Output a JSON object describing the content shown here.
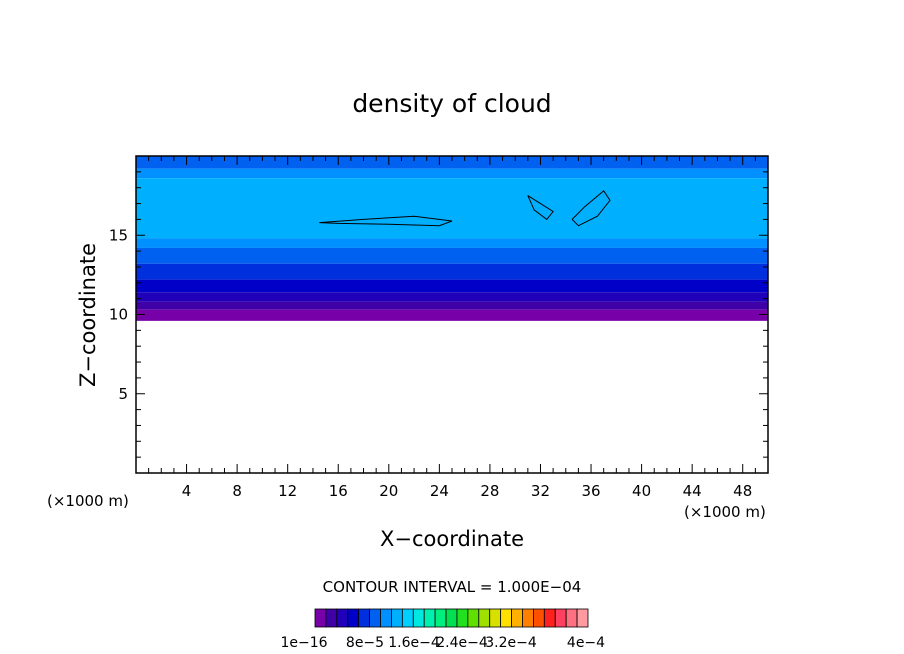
{
  "chart_data": {
    "type": "heatmap",
    "title": "density of cloud",
    "xlabel": "X−coordinate",
    "ylabel": "Z−coordinate",
    "x_unit": "(×1000 m)",
    "x_unit_right": "(×1000 m)",
    "xlim": [
      0,
      50
    ],
    "ylim": [
      0,
      20
    ],
    "x_ticks": [
      "4",
      "8",
      "12",
      "16",
      "20",
      "24",
      "28",
      "32",
      "36",
      "40",
      "44",
      "48"
    ],
    "y_ticks": [
      "5",
      "10",
      "15"
    ],
    "contour_interval": "CONTOUR INTERVAL = 1.000E−04",
    "colorbar_labels": [
      "1e−16",
      "8e−5",
      "1.6e−4",
      "2.4e−4",
      "3.2e−4",
      "4e−4"
    ],
    "colorbar_colors": [
      "#7700a8",
      "#4000a8",
      "#2000b8",
      "#0000c8",
      "#0030dd",
      "#0060f0",
      "#0090ff",
      "#00b0ff",
      "#00d0ff",
      "#00e8e0",
      "#00f0b0",
      "#00f080",
      "#00e050",
      "#20e020",
      "#60e000",
      "#a0e000",
      "#d8e000",
      "#ffe000",
      "#ffb000",
      "#ff8000",
      "#ff5000",
      "#ff2020",
      "#ff4060",
      "#ff7080",
      "#ff9aa0"
    ],
    "bands": [
      {
        "z_bottom": 19.2,
        "z_top": 20,
        "color": "#0060f0"
      },
      {
        "z_bottom": 18.6,
        "z_top": 19.2,
        "color": "#0090ff"
      },
      {
        "z_bottom": 14.8,
        "z_top": 18.6,
        "color": "#00b0ff"
      },
      {
        "z_bottom": 14.2,
        "z_top": 14.8,
        "color": "#0090ff"
      },
      {
        "z_bottom": 13.2,
        "z_top": 14.2,
        "color": "#0060f0"
      },
      {
        "z_bottom": 12.2,
        "z_top": 13.2,
        "color": "#0030dd"
      },
      {
        "z_bottom": 11.4,
        "z_top": 12.2,
        "color": "#0000c8"
      },
      {
        "z_bottom": 10.8,
        "z_top": 11.4,
        "color": "#2000b8"
      },
      {
        "z_bottom": 10.3,
        "z_top": 10.8,
        "color": "#4000a8"
      },
      {
        "z_bottom": 9.6,
        "z_top": 10.3,
        "color": "#7700a8"
      }
    ],
    "contour_lines": [
      {
        "value": 0.0001,
        "points": [
          [
            14.5,
            15.8
          ],
          [
            18,
            16.0
          ],
          [
            22,
            16.2
          ],
          [
            25,
            15.9
          ],
          [
            24,
            15.6
          ],
          [
            20,
            15.7
          ],
          [
            16,
            15.75
          ],
          [
            14.5,
            15.8
          ]
        ]
      },
      {
        "value": 0.0001,
        "points": [
          [
            31,
            17.5
          ],
          [
            32,
            17.0
          ],
          [
            33,
            16.5
          ],
          [
            32.5,
            16.0
          ],
          [
            31.5,
            16.6
          ],
          [
            31,
            17.5
          ]
        ]
      },
      {
        "value": 0.0001,
        "points": [
          [
            34.5,
            16.0
          ],
          [
            35.5,
            16.8
          ],
          [
            37,
            17.8
          ],
          [
            37.5,
            17.2
          ],
          [
            36.5,
            16.2
          ],
          [
            35,
            15.6
          ],
          [
            34.5,
            16.0
          ]
        ]
      }
    ],
    "grid": false
  }
}
